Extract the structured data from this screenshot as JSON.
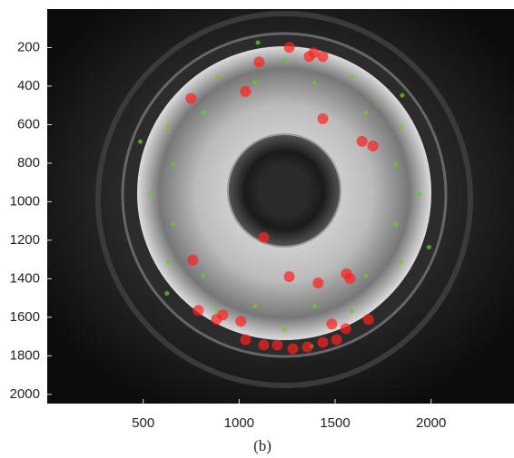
{
  "chart_data": {
    "type": "scatter",
    "caption": "(b)",
    "xlim": [
      0,
      2432
    ],
    "ylim": [
      0,
      2048
    ],
    "y_reversed": true,
    "xticks": [
      500,
      1000,
      1500,
      2000
    ],
    "yticks": [
      200,
      400,
      600,
      800,
      1000,
      1200,
      1400,
      1600,
      1800,
      2000
    ],
    "series": [
      {
        "color": "#66cc22",
        "marker_size": 2.5,
        "opacity": 0.75,
        "x": [
          1937,
          1843,
          1587,
          1237,
          887,
          631,
          537,
          631,
          887,
          1237,
          1587,
          1843,
          1817,
          1661,
          1392,
          1082,
          813,
          657,
          657,
          813,
          1082,
          1392,
          1661,
          1817,
          1989,
          1376,
          624,
          485,
          1098,
          1850
        ],
        "values": [
          962,
          1312,
          1568,
          1662,
          1568,
          1312,
          962,
          612,
          356,
          262,
          356,
          612,
          1117,
          1386,
          1542,
          1542,
          1386,
          1117,
          807,
          538,
          382,
          382,
          538,
          807,
          1236,
          1750,
          1476,
          688,
          174,
          448
        ]
      },
      {
        "color": "#ff2020",
        "marker_size": 6,
        "opacity": 0.7,
        "x": [
          749,
          1104,
          1261,
          1389,
          1436,
          1365,
          1033,
          1436,
          1640,
          758,
          1261,
          1559,
          1578,
          787,
          882,
          1009,
          1033,
          1128,
          1199,
          1280,
          1355,
          1436,
          1507,
          1483,
          1673,
          1555,
          1697,
          915,
          1412,
          1128
        ],
        "values": [
          464,
          275,
          199,
          227,
          246,
          246,
          427,
          569,
          687,
          1303,
          1389,
          1374,
          1398,
          1564,
          1611,
          1621,
          1716,
          1744,
          1744,
          1763,
          1754,
          1730,
          1716,
          1635,
          1611,
          1659,
          711,
          1588,
          1422,
          1185
        ]
      }
    ]
  }
}
